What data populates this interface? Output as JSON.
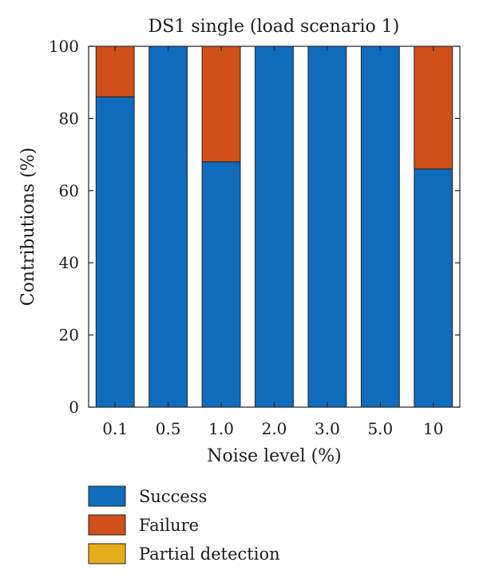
{
  "chart_data": {
    "type": "bar",
    "stacked": true,
    "title": "DS1 single (load scenario 1)",
    "xlabel": "Noise level (%)",
    "ylabel": "Contributions (%)",
    "ylim": [
      0,
      100
    ],
    "yticks": [
      0,
      20,
      40,
      60,
      80,
      100
    ],
    "categories": [
      "0.1",
      "0.5",
      "1.0",
      "2.0",
      "3.0",
      "5.0",
      "10"
    ],
    "series": [
      {
        "name": "Success",
        "color": "#0f6cbd",
        "values": [
          86,
          100,
          68,
          100,
          100,
          100,
          66
        ]
      },
      {
        "name": "Failure",
        "color": "#d14f1a",
        "values": [
          14,
          0,
          32,
          0,
          0,
          0,
          34
        ]
      },
      {
        "name": "Partial detection",
        "color": "#e6ac1c",
        "values": [
          0,
          0,
          0,
          0,
          0,
          0,
          0
        ]
      }
    ],
    "grid": false,
    "legend_position": "bottom-left"
  }
}
